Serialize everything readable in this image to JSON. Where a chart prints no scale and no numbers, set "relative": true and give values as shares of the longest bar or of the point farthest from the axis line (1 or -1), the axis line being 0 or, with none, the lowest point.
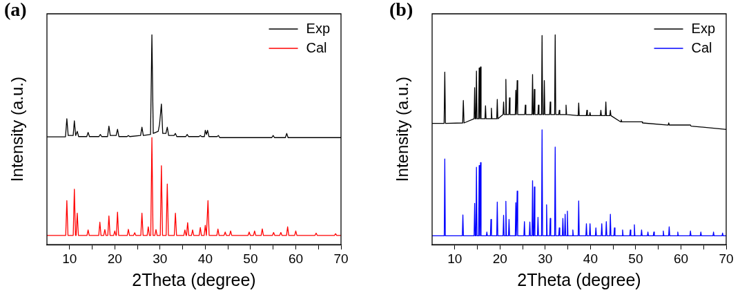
{
  "chart_data": [
    {
      "type": "line",
      "title": "(a)",
      "xlabel": "2Theta (degree)",
      "ylabel": "Intensity (a.u.)",
      "relative": true,
      "legend": "top right",
      "grid": false,
      "tick_labels": "x",
      "xlim": [
        5,
        70
      ],
      "xticks": [
        10,
        {
          "value": 15,
          "label": null
        },
        20,
        {
          "value": 25,
          "label": null
        },
        30,
        {
          "value": 35,
          "label": null
        },
        40,
        {
          "value": 45,
          "label": null
        },
        50,
        {
          "value": 55,
          "label": null
        },
        60,
        {
          "value": 65,
          "label": null
        },
        70
      ],
      "series": [
        {
          "name": "Exp",
          "color": "#000000",
          "x": [
            5,
            9.1,
            9.4,
            9.7,
            10.8,
            11.06,
            11.35,
            11.7,
            12.0,
            13.8,
            14.1,
            14.4,
            16.5,
            16.8,
            17.1,
            18.4,
            18.7,
            19.0,
            20.3,
            20.6,
            20.9,
            22.7,
            23.0,
            23.3,
            25.7,
            26.0,
            26.3,
            27.9,
            28.2,
            28.5,
            29.6,
            29.9,
            30.3,
            30.6,
            31.3,
            31.6,
            31.9,
            33.1,
            33.4,
            33.7,
            35.7,
            36.0,
            36.3,
            38.6,
            38.9,
            39.2,
            39.8,
            40.0,
            40.25,
            40.5,
            40.8,
            42.6,
            42.9,
            43.2,
            54.7,
            55.0,
            55.3,
            57.7,
            58.0,
            58.3,
            70
          ],
          "values": [
            0.514,
            0.514,
            0.6,
            0.52,
            0.52,
            0.59,
            0.52,
            0.54,
            0.515,
            0.515,
            0.535,
            0.515,
            0.515,
            0.525,
            0.515,
            0.515,
            0.565,
            0.52,
            0.52,
            0.55,
            0.515,
            0.515,
            0.52,
            0.515,
            0.52,
            0.56,
            0.52,
            0.525,
            1.0,
            0.53,
            0.54,
            0.575,
            0.67,
            0.53,
            0.53,
            0.56,
            0.52,
            0.52,
            0.53,
            0.515,
            0.515,
            0.525,
            0.515,
            0.515,
            0.52,
            0.515,
            0.515,
            0.545,
            0.525,
            0.545,
            0.515,
            0.515,
            0.52,
            0.51,
            0.51,
            0.52,
            0.51,
            0.51,
            0.53,
            0.51,
            0.51
          ]
        },
        {
          "name": "Cal",
          "color": "#ff0000",
          "x": [
            5,
            9.15,
            9.4,
            9.65,
            10.81,
            11.06,
            11.31,
            11.45,
            11.7,
            11.95,
            13.85,
            14.1,
            14.35,
            16.45,
            16.7,
            16.95,
            17.55,
            17.8,
            18.05,
            18.45,
            18.7,
            18.95,
            19.75,
            20.0,
            20.25,
            20.35,
            20.6,
            20.85,
            22.75,
            23.0,
            23.25,
            24.15,
            24.4,
            24.65,
            25.75,
            26.0,
            26.25,
            27.15,
            27.4,
            27.65,
            27.95,
            28.2,
            28.45,
            28.85,
            29.1,
            29.35,
            30.05,
            30.3,
            30.55,
            31.35,
            31.6,
            31.85,
            33.15,
            33.4,
            33.65,
            35.25,
            35.5,
            35.75,
            35.85,
            36.1,
            36.35,
            36.95,
            37.2,
            37.45,
            38.65,
            38.9,
            39.15,
            39.75,
            40.0,
            40.25,
            40.35,
            40.6,
            40.85,
            42.55,
            42.8,
            43.05,
            44.15,
            44.4,
            44.65,
            45.35,
            45.6,
            45.85,
            49.45,
            49.7,
            49.95,
            50.65,
            50.9,
            51.15,
            52.35,
            52.6,
            52.85,
            54.85,
            55.1,
            55.35,
            56.45,
            56.7,
            56.95,
            57.95,
            58.2,
            58.45,
            59.75,
            60.0,
            60.25,
            64.25,
            64.5,
            64.75,
            68.55,
            68.8,
            69.05,
            70
          ],
          "values": [
            0.044,
            0.044,
            0.21,
            0.044,
            0.044,
            0.264,
            0.044,
            0.044,
            0.15,
            0.044,
            0.044,
            0.07,
            0.044,
            0.044,
            0.107,
            0.044,
            0.044,
            0.072,
            0.044,
            0.044,
            0.137,
            0.044,
            0.044,
            0.065,
            0.044,
            0.044,
            0.155,
            0.044,
            0.044,
            0.073,
            0.044,
            0.044,
            0.057,
            0.044,
            0.044,
            0.15,
            0.044,
            0.044,
            0.085,
            0.044,
            0.044,
            0.51,
            0.044,
            0.044,
            0.072,
            0.044,
            0.044,
            0.376,
            0.044,
            0.044,
            0.289,
            0.044,
            0.044,
            0.15,
            0.044,
            0.044,
            0.07,
            0.044,
            0.044,
            0.105,
            0.044,
            0.044,
            0.07,
            0.044,
            0.044,
            0.082,
            0.044,
            0.044,
            0.092,
            0.044,
            0.044,
            0.21,
            0.044,
            0.044,
            0.074,
            0.044,
            0.044,
            0.06,
            0.044,
            0.044,
            0.065,
            0.044,
            0.044,
            0.06,
            0.044,
            0.044,
            0.065,
            0.044,
            0.044,
            0.075,
            0.044,
            0.044,
            0.058,
            0.044,
            0.044,
            0.058,
            0.044,
            0.044,
            0.085,
            0.044,
            0.044,
            0.065,
            0.044,
            0.044,
            0.055,
            0.044,
            0.044,
            0.052,
            0.044,
            0.044
          ]
        }
      ]
    },
    {
      "type": "line",
      "title": "(b)",
      "xlabel": "2Theta (degree)",
      "ylabel": "Intensity (a.u.)",
      "relative": true,
      "legend": "top right",
      "grid": false,
      "tick_labels": "x",
      "xlim": [
        5,
        70
      ],
      "xticks": [
        10,
        {
          "value": 15,
          "label": null
        },
        20,
        {
          "value": 25,
          "label": null
        },
        30,
        {
          "value": 35,
          "label": null
        },
        40,
        {
          "value": 45,
          "label": null
        },
        50,
        {
          "value": 55,
          "label": null
        },
        60,
        {
          "value": 65,
          "label": null
        },
        70
      ],
      "series": [
        {
          "name": "Exp",
          "color": "#000000",
          "x": [
            5,
            7.65,
            7.8,
            7.95,
            11.75,
            11.9,
            12.05,
            14.28,
            14.4,
            14.52,
            14.68,
            14.8,
            14.92,
            15.28,
            15.4,
            15.52,
            15.58,
            15.7,
            15.82,
            16.68,
            16.8,
            16.92,
            17.98,
            18.1,
            18.22,
            19.28,
            19.4,
            19.52,
            20.68,
            20.8,
            20.92,
            21.18,
            21.3,
            21.42,
            21.98,
            22.1,
            22.22,
            23.38,
            23.5,
            23.62,
            23.68,
            23.8,
            23.92,
            25.48,
            25.6,
            25.72,
            27.08,
            27.2,
            27.32,
            27.48,
            27.6,
            27.72,
            28.38,
            28.5,
            28.62,
            29.18,
            29.3,
            29.42,
            29.68,
            29.8,
            29.92,
            30.98,
            31.1,
            31.22,
            32.08,
            32.2,
            32.32,
            32.98,
            33.1,
            33.22,
            34.48,
            34.6,
            34.72,
            37.28,
            37.4,
            37.52,
            39.08,
            39.2,
            39.32,
            39.78,
            39.9,
            40.02,
            42.18,
            42.3,
            42.42,
            43.28,
            43.4,
            43.52,
            44.28,
            44.4,
            44.52,
            46.68,
            46.8,
            46.92,
            51.28,
            51.4,
            51.52,
            57.18,
            57.3,
            57.42,
            61.98,
            62.1,
            62.22,
            70
          ],
          "values": [
            0.578,
            0.578,
            0.822,
            0.578,
            0.58,
            0.687,
            0.58,
            0.6,
            0.748,
            0.6,
            0.6,
            0.827,
            0.6,
            0.6,
            0.842,
            0.6,
            0.6,
            0.847,
            0.6,
            0.6,
            0.662,
            0.6,
            0.6,
            0.65,
            0.6,
            0.6,
            0.692,
            0.6,
            0.62,
            0.68,
            0.62,
            0.62,
            0.788,
            0.62,
            0.62,
            0.7,
            0.62,
            0.62,
            0.736,
            0.62,
            0.62,
            0.782,
            0.62,
            0.62,
            0.665,
            0.62,
            0.62,
            0.811,
            0.62,
            0.62,
            0.74,
            0.62,
            0.62,
            0.665,
            0.62,
            0.62,
            0.997,
            0.62,
            0.62,
            0.782,
            0.62,
            0.62,
            0.68,
            0.62,
            0.62,
            1.0,
            0.62,
            0.62,
            0.64,
            0.62,
            0.62,
            0.665,
            0.62,
            0.615,
            0.675,
            0.615,
            0.615,
            0.64,
            0.615,
            0.615,
            0.63,
            0.615,
            0.615,
            0.64,
            0.615,
            0.615,
            0.68,
            0.615,
            0.615,
            0.64,
            0.615,
            0.585,
            0.595,
            0.585,
            0.585,
            0.585,
            0.58,
            0.57,
            0.58,
            0.57,
            0.57,
            0.57,
            0.565,
            0.549
          ]
        },
        {
          "name": "Cal",
          "color": "#0000ff",
          "x": [
            5,
            7.68,
            7.8,
            7.92,
            11.68,
            11.8,
            11.92,
            14.28,
            14.4,
            14.52,
            14.68,
            14.8,
            14.92,
            15.28,
            15.4,
            15.52,
            15.58,
            15.7,
            15.82,
            16.98,
            17.1,
            17.22,
            17.88,
            18.0,
            18.12,
            19.28,
            19.4,
            19.52,
            20.68,
            20.8,
            20.92,
            21.18,
            21.3,
            21.42,
            21.88,
            22.0,
            22.12,
            23.38,
            23.5,
            23.62,
            23.68,
            23.8,
            23.92,
            25.28,
            25.4,
            25.52,
            26.48,
            26.6,
            26.72,
            27.08,
            27.2,
            27.32,
            27.48,
            27.6,
            27.72,
            28.28,
            28.4,
            28.52,
            29.18,
            29.3,
            29.42,
            30.18,
            30.3,
            30.42,
            30.98,
            31.1,
            31.22,
            32.08,
            32.2,
            32.32,
            32.98,
            33.1,
            33.22,
            33.78,
            33.9,
            34.02,
            34.28,
            34.4,
            34.52,
            34.78,
            34.9,
            35.02,
            35.98,
            36.1,
            36.22,
            37.28,
            37.4,
            37.52,
            38.98,
            39.1,
            39.22,
            39.78,
            39.9,
            40.02,
            41.08,
            41.2,
            41.32,
            42.38,
            42.5,
            42.62,
            43.38,
            43.5,
            43.62,
            44.28,
            44.4,
            44.52,
            45.18,
            45.3,
            45.42,
            46.98,
            47.1,
            47.22,
            48.68,
            48.8,
            48.92,
            49.58,
            49.7,
            49.82,
            51.18,
            51.3,
            51.42,
            52.58,
            52.7,
            52.82,
            53.88,
            54.0,
            54.12,
            55.98,
            56.1,
            56.22,
            57.28,
            57.4,
            57.52,
            59.18,
            59.3,
            59.42,
            61.98,
            62.1,
            62.22,
            64.28,
            64.4,
            64.52,
            67.08,
            67.2,
            67.32,
            69.08,
            69.2,
            69.32,
            70
          ],
          "values": [
            0.042,
            0.042,
            0.408,
            0.042,
            0.042,
            0.142,
            0.042,
            0.042,
            0.197,
            0.042,
            0.042,
            0.369,
            0.042,
            0.042,
            0.377,
            0.042,
            0.042,
            0.391,
            0.042,
            0.042,
            0.06,
            0.042,
            0.042,
            0.12,
            0.042,
            0.042,
            0.203,
            0.042,
            0.042,
            0.14,
            0.042,
            0.042,
            0.207,
            0.042,
            0.042,
            0.12,
            0.042,
            0.042,
            0.2,
            0.042,
            0.042,
            0.255,
            0.042,
            0.042,
            0.11,
            0.042,
            0.042,
            0.108,
            0.042,
            0.042,
            0.305,
            0.042,
            0.042,
            0.275,
            0.042,
            0.042,
            0.13,
            0.042,
            0.042,
            0.547,
            0.042,
            0.042,
            0.19,
            0.042,
            0.042,
            0.125,
            0.042,
            0.042,
            0.465,
            0.042,
            0.042,
            0.08,
            0.042,
            0.042,
            0.125,
            0.042,
            0.042,
            0.145,
            0.042,
            0.042,
            0.16,
            0.042,
            0.042,
            0.07,
            0.042,
            0.042,
            0.208,
            0.042,
            0.042,
            0.1,
            0.042,
            0.042,
            0.1,
            0.042,
            0.042,
            0.08,
            0.042,
            0.042,
            0.1,
            0.042,
            0.042,
            0.11,
            0.042,
            0.042,
            0.145,
            0.042,
            0.042,
            0.08,
            0.042,
            0.042,
            0.07,
            0.042,
            0.042,
            0.07,
            0.042,
            0.042,
            0.095,
            0.042,
            0.042,
            0.07,
            0.042,
            0.042,
            0.06,
            0.042,
            0.042,
            0.06,
            0.042,
            0.042,
            0.065,
            0.042,
            0.042,
            0.085,
            0.042,
            0.042,
            0.06,
            0.042,
            0.042,
            0.065,
            0.042,
            0.042,
            0.06,
            0.042,
            0.042,
            0.06,
            0.042,
            0.042,
            0.055,
            0.042,
            0.042
          ]
        }
      ]
    }
  ]
}
